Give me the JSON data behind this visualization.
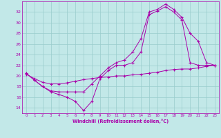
{
  "xlabel": "Windchill (Refroidissement éolien,°C)",
  "bg_color": "#c2e8e8",
  "line_color": "#aa00aa",
  "grid_color": "#99cccc",
  "xlim": [
    -0.5,
    23.5
  ],
  "ylim": [
    13.0,
    34.0
  ],
  "yticks": [
    14,
    16,
    18,
    20,
    22,
    24,
    26,
    28,
    30,
    32
  ],
  "xticks": [
    0,
    1,
    2,
    3,
    4,
    5,
    6,
    7,
    8,
    9,
    10,
    11,
    12,
    13,
    14,
    15,
    16,
    17,
    18,
    19,
    20,
    21,
    22,
    23
  ],
  "line1_x": [
    0,
    1,
    2,
    3,
    4,
    5,
    6,
    7,
    8,
    9,
    10,
    11,
    12,
    13,
    14,
    15,
    16,
    17,
    18,
    19,
    20,
    21,
    22,
    23
  ],
  "line1_y": [
    20.5,
    19.2,
    18.0,
    17.0,
    16.5,
    16.0,
    15.2,
    13.5,
    15.2,
    19.5,
    21.0,
    22.0,
    22.0,
    22.5,
    24.5,
    31.5,
    32.2,
    33.0,
    32.0,
    30.5,
    22.5,
    22.0,
    22.0,
    22.0
  ],
  "line2_x": [
    0,
    1,
    2,
    3,
    4,
    5,
    6,
    7,
    8,
    9,
    10,
    11,
    12,
    13,
    14,
    15,
    16,
    17,
    18,
    19,
    20,
    21,
    22,
    23
  ],
  "line2_y": [
    20.5,
    19.2,
    18.0,
    17.2,
    17.0,
    17.0,
    17.0,
    17.0,
    18.5,
    20.0,
    21.5,
    22.5,
    23.0,
    24.5,
    27.0,
    32.0,
    32.5,
    33.5,
    32.5,
    31.0,
    28.0,
    26.5,
    22.5,
    22.0
  ],
  "line3_x": [
    0,
    1,
    2,
    3,
    4,
    5,
    6,
    7,
    8,
    9,
    10,
    11,
    12,
    13,
    14,
    15,
    16,
    17,
    18,
    19,
    20,
    21,
    22,
    23
  ],
  "line3_y": [
    20.3,
    19.5,
    18.8,
    18.5,
    18.5,
    18.7,
    19.0,
    19.3,
    19.5,
    19.7,
    19.8,
    20.0,
    20.0,
    20.2,
    20.3,
    20.5,
    20.7,
    21.0,
    21.2,
    21.3,
    21.3,
    21.5,
    21.8,
    22.0
  ]
}
